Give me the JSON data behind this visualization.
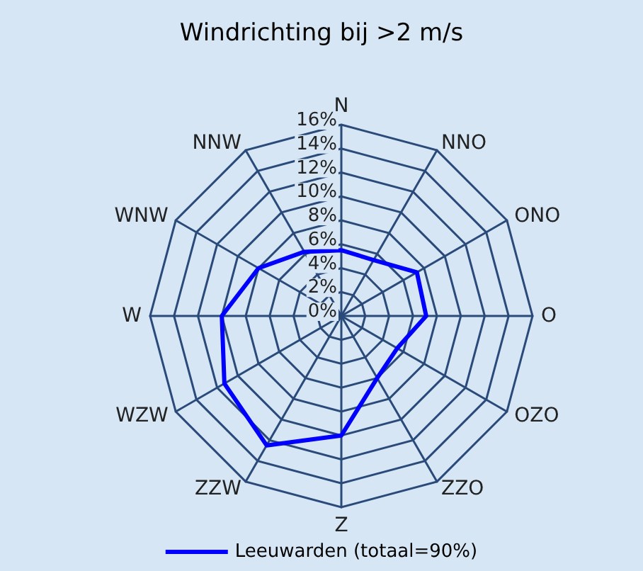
{
  "chart_data": {
    "type": "radar",
    "title": "Windrichting bij >2 m/s",
    "categories": [
      "N",
      "NNO",
      "ONO",
      "O",
      "OZO",
      "ZZO",
      "Z",
      "ZZW",
      "WZW",
      "W",
      "WNW",
      "NNW"
    ],
    "series": [
      {
        "name": "Leeuwarden (totaal=90%)",
        "color": "#0000ff",
        "values": [
          5.5,
          5.4,
          7.3,
          7.1,
          5.4,
          6.0,
          10.0,
          12.5,
          11.3,
          10.0,
          8.0,
          6.2
        ]
      }
    ],
    "ylim": [
      0,
      16
    ],
    "yticks": [
      {
        "value": 0,
        "label": "0%"
      },
      {
        "value": 2,
        "label": "2%"
      },
      {
        "value": 4,
        "label": "4%"
      },
      {
        "value": 6,
        "label": "6%"
      },
      {
        "value": 8,
        "label": "8%"
      },
      {
        "value": 10,
        "label": "10%"
      },
      {
        "value": 12,
        "label": "12%"
      },
      {
        "value": 14,
        "label": "14%"
      },
      {
        "value": 16,
        "label": "16%"
      }
    ],
    "grid": true,
    "legend": "bottom"
  }
}
